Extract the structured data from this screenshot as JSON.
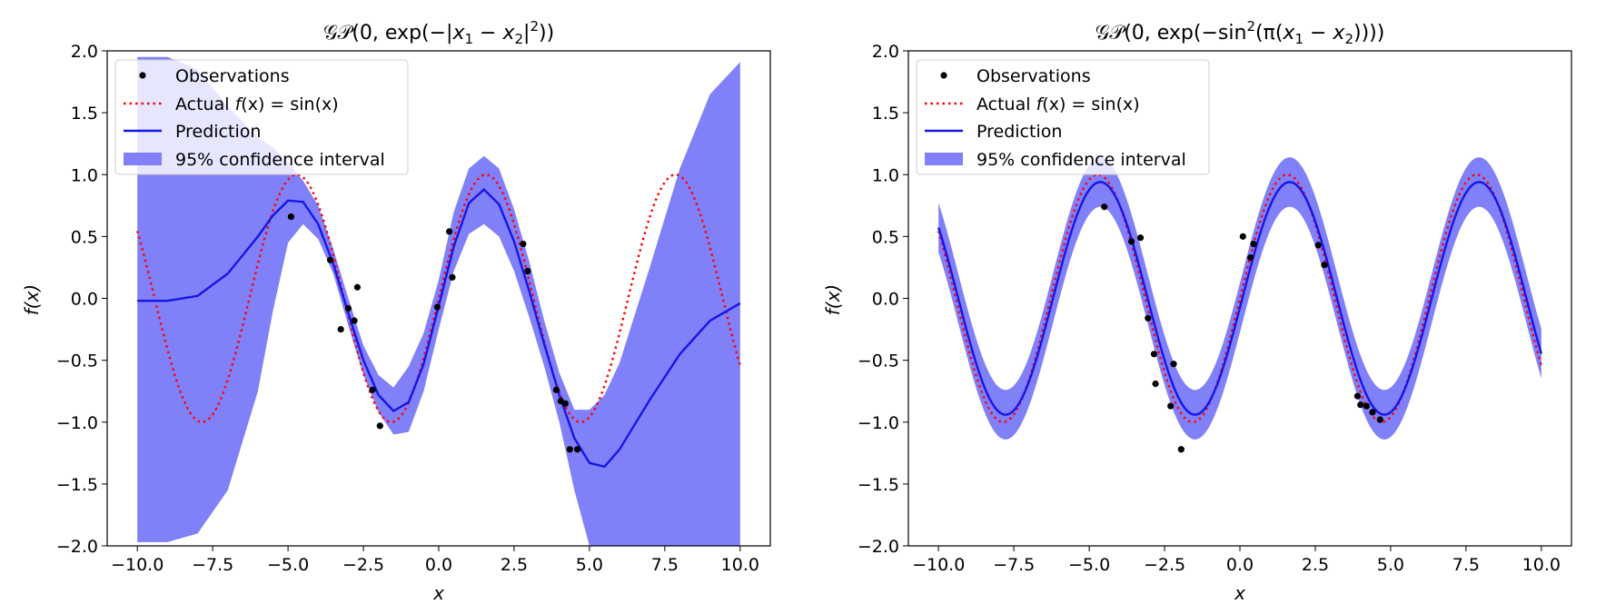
{
  "chart_data": [
    {
      "type": "line",
      "title_parts": {
        "a": "𝒢𝒫(0, exp(−|",
        "x1": "x",
        "x1sub": "1",
        "minus": " − ",
        "x2": "x",
        "x2sub": "2",
        "b": "|",
        "sup": "2",
        "c": "))"
      },
      "xlabel": "x",
      "ylabel": "f(x)",
      "xlim": [
        -11.0,
        11.0
      ],
      "ylim": [
        -2.0,
        2.0
      ],
      "xticks": [
        "−10.0",
        "−7.5",
        "−5.0",
        "−2.5",
        "0.0",
        "2.5",
        "5.0",
        "7.5",
        "10.0"
      ],
      "xtick_values": [
        -10,
        -7.5,
        -5,
        -2.5,
        0,
        2.5,
        5,
        7.5,
        10
      ],
      "yticks": [
        "−2.0",
        "−1.5",
        "−1.0",
        "−0.5",
        "0.0",
        "0.5",
        "1.0",
        "1.5",
        "2.0"
      ],
      "ytick_values": [
        -2,
        -1.5,
        -1,
        -0.5,
        0,
        0.5,
        1,
        1.5,
        2
      ],
      "legend_position": "top-left",
      "legend": {
        "observations": "Observations",
        "actual_prefix": "Actual ",
        "actual_f": "f",
        "actual_arg": "(x) = sin(x)",
        "prediction": "Prediction",
        "ci": "95% confidence interval"
      },
      "colors": {
        "actual": "#ff0000",
        "prediction": "#1515e8",
        "ci": "#8080f9",
        "obs": "#000000"
      },
      "observations": {
        "x": [
          -4.9,
          -3.6,
          -3.25,
          -3.0,
          -2.8,
          -2.7,
          -2.2,
          -1.95,
          -0.05,
          0.35,
          0.45,
          2.8,
          2.95,
          3.9,
          4.05,
          4.2,
          4.35,
          4.6
        ],
        "y": [
          0.66,
          0.31,
          -0.25,
          -0.08,
          -0.18,
          0.09,
          -0.74,
          -1.03,
          -0.07,
          0.54,
          0.17,
          0.44,
          0.22,
          -0.74,
          -0.83,
          -0.85,
          -1.22,
          -1.22
        ]
      },
      "prediction": {
        "x": [
          -10,
          -9,
          -8,
          -7,
          -6,
          -5.5,
          -5,
          -4.5,
          -4,
          -3.5,
          -3,
          -2.5,
          -2,
          -1.5,
          -1,
          -0.5,
          0,
          0.5,
          1,
          1.5,
          2,
          2.5,
          3,
          3.5,
          4,
          4.5,
          5,
          5.5,
          6,
          7,
          8,
          9,
          10
        ],
        "y": [
          -0.02,
          -0.02,
          0.02,
          0.2,
          0.5,
          0.67,
          0.79,
          0.78,
          0.6,
          0.28,
          -0.12,
          -0.5,
          -0.78,
          -0.91,
          -0.84,
          -0.53,
          -0.06,
          0.42,
          0.77,
          0.88,
          0.76,
          0.46,
          0.06,
          -0.37,
          -0.78,
          -1.13,
          -1.33,
          -1.36,
          -1.22,
          -0.82,
          -0.45,
          -0.18,
          -0.04
        ]
      },
      "confidence_interval": {
        "x": [
          -10,
          -9,
          -8,
          -7,
          -6,
          -5.5,
          -5,
          -4.5,
          -4,
          -3.5,
          -3,
          -2.5,
          -2,
          -1.5,
          -1,
          -0.5,
          0,
          0.5,
          1,
          1.5,
          2,
          2.5,
          3,
          3.5,
          4,
          4.5,
          5,
          5.5,
          6,
          7,
          8,
          9,
          10
        ],
        "lower": [
          -1.97,
          -1.97,
          -1.9,
          -1.55,
          -0.75,
          -0.1,
          0.45,
          0.6,
          0.48,
          0.2,
          -0.22,
          -0.62,
          -0.92,
          -1.1,
          -1.08,
          -0.75,
          -0.25,
          0.22,
          0.52,
          0.6,
          0.5,
          0.22,
          -0.15,
          -0.55,
          -1.0,
          -1.55,
          -2.0,
          -2.0,
          -2.0,
          -2.0,
          -2.0,
          -2.0,
          -2.0
        ],
        "upper": [
          1.95,
          1.95,
          1.85,
          1.55,
          1.3,
          1.22,
          1.1,
          0.95,
          0.75,
          0.4,
          0.0,
          -0.38,
          -0.62,
          -0.72,
          -0.55,
          -0.28,
          0.15,
          0.7,
          1.05,
          1.15,
          1.05,
          0.72,
          0.3,
          -0.18,
          -0.6,
          -0.9,
          -0.9,
          -0.78,
          -0.52,
          0.25,
          1.05,
          1.65,
          1.91
        ]
      }
    },
    {
      "type": "line",
      "title_parts": {
        "a": "𝒢𝒫(0, exp(−sin",
        "sup": "2",
        "b": "(π(",
        "x1": "x",
        "x1sub": "1",
        "minus": " − ",
        "x2": "x",
        "x2sub": "2",
        "c": "))))"
      },
      "xlabel": "x",
      "ylabel": "f(x)",
      "xlim": [
        -11.0,
        11.0
      ],
      "ylim": [
        -2.0,
        2.0
      ],
      "xticks": [
        "−10.0",
        "−7.5",
        "−5.0",
        "−2.5",
        "0.0",
        "2.5",
        "5.0",
        "7.5",
        "10.0"
      ],
      "xtick_values": [
        -10,
        -7.5,
        -5,
        -2.5,
        0,
        2.5,
        5,
        7.5,
        10
      ],
      "yticks": [
        "−2.0",
        "−1.5",
        "−1.0",
        "−0.5",
        "0.0",
        "0.5",
        "1.0",
        "1.5",
        "2.0"
      ],
      "ytick_values": [
        -2,
        -1.5,
        -1,
        -0.5,
        0,
        0.5,
        1,
        1.5,
        2
      ],
      "legend_position": "top-left",
      "legend": {
        "observations": "Observations",
        "actual_prefix": "Actual ",
        "actual_f": "f",
        "actual_arg": "(x) = sin(x)",
        "prediction": "Prediction",
        "ci": "95% confidence interval"
      },
      "colors": {
        "actual": "#ff0000",
        "prediction": "#1515e8",
        "ci": "#8080f9",
        "obs": "#000000"
      },
      "observations": {
        "x": [
          -4.5,
          -3.6,
          -3.3,
          -3.05,
          -2.85,
          -2.8,
          -2.3,
          -2.2,
          -1.95,
          0.1,
          0.35,
          0.45,
          2.6,
          2.8,
          3.9,
          4.0,
          4.2,
          4.4,
          4.65
        ],
        "y": [
          0.74,
          0.46,
          0.49,
          -0.16,
          -0.45,
          -0.69,
          -0.87,
          -0.53,
          -1.22,
          0.5,
          0.33,
          0.44,
          0.43,
          0.27,
          -0.79,
          -0.86,
          -0.87,
          -0.92,
          -0.98
        ]
      },
      "pred_params": {
        "amplitude": 0.94,
        "phase_shift": 0.08
      },
      "ci_params": {
        "half_width": 0.2
      }
    }
  ]
}
